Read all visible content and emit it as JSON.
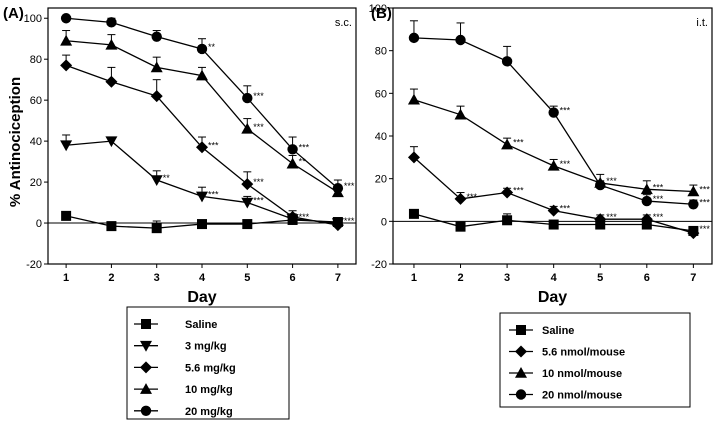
{
  "chart_data": [
    {
      "type": "line",
      "panel_label": "(A)",
      "corner_label": "s.c.",
      "ylabel": "% Antinociception",
      "xlabel": "Day",
      "x": [
        1,
        2,
        3,
        4,
        5,
        6,
        7
      ],
      "xticks": [
        "1",
        "2",
        "3",
        "4",
        "5",
        "6",
        "7"
      ],
      "yticks": [
        "-20",
        "0",
        "20",
        "40",
        "60",
        "80",
        "100"
      ],
      "ylim": [
        -20,
        105
      ],
      "xlim": [
        0.6,
        7.4
      ],
      "series": [
        {
          "name": "Saline",
          "marker": "square",
          "values": [
            3.5,
            -1.5,
            -2.5,
            -0.5,
            -0.5,
            1.5,
            0.5
          ],
          "errors": [
            1.5,
            1.5,
            3.5,
            1.5,
            1.5,
            1.5,
            1.5
          ]
        },
        {
          "name": "3 mg/kg",
          "marker": "triangle-down",
          "values": [
            38,
            40,
            21,
            13,
            10,
            2,
            0
          ],
          "errors": [
            5,
            1.5,
            4.5,
            4.5,
            3,
            2.5,
            1.5
          ]
        },
        {
          "name": "5.6 mg/kg",
          "marker": "diamond",
          "values": [
            77,
            69,
            62,
            37,
            19,
            3,
            -1
          ],
          "errors": [
            5,
            7,
            8,
            5,
            6,
            3,
            2
          ]
        },
        {
          "name": "10 mg/kg",
          "marker": "triangle-up",
          "values": [
            89,
            87,
            76,
            72,
            46,
            29,
            15
          ],
          "errors": [
            5,
            5,
            5,
            4,
            5,
            4,
            3
          ]
        },
        {
          "name": "20 mg/kg",
          "marker": "circle",
          "values": [
            100,
            98,
            91,
            85,
            61,
            36,
            17
          ],
          "errors": [
            1,
            2,
            3,
            5,
            6,
            6,
            4
          ]
        }
      ],
      "annotations": [
        {
          "x": 4,
          "y": 85,
          "text": "**"
        },
        {
          "x": 5,
          "y": 61,
          "text": "***"
        },
        {
          "x": 6,
          "y": 36,
          "text": "***"
        },
        {
          "x": 7,
          "y": 17,
          "text": "***"
        },
        {
          "x": 4,
          "y": 37,
          "text": "***"
        },
        {
          "x": 5,
          "y": 46,
          "text": "***"
        },
        {
          "x": 6,
          "y": 29,
          "text": "**"
        },
        {
          "x": 3,
          "y": 21,
          "text": "**"
        },
        {
          "x": 4,
          "y": 13,
          "text": "***"
        },
        {
          "x": 5,
          "y": 19,
          "text": "***"
        },
        {
          "x": 5,
          "y": 10,
          "text": "***"
        },
        {
          "x": 6,
          "y": 2,
          "text": "***"
        },
        {
          "x": 7,
          "y": 0,
          "text": "***"
        }
      ],
      "legend": [
        "Saline",
        "3 mg/kg",
        "5.6 mg/kg",
        "10 mg/kg",
        "20 mg/kg"
      ]
    },
    {
      "type": "line",
      "panel_label": "(B)",
      "corner_label": "i.t.",
      "ylabel": "",
      "xlabel": "Day",
      "x": [
        1,
        2,
        3,
        4,
        5,
        6,
        7
      ],
      "xticks": [
        "1",
        "2",
        "3",
        "4",
        "5",
        "6",
        "7"
      ],
      "yticks": [
        "-20",
        "0",
        "20",
        "40",
        "60",
        "80",
        "100"
      ],
      "ylim": [
        -20,
        100
      ],
      "xlim": [
        0.55,
        7.4
      ],
      "series": [
        {
          "name": "Saline",
          "marker": "square",
          "values": [
            3.5,
            -2.5,
            0.5,
            -1.5,
            -1.5,
            -1.5,
            -4.5
          ],
          "errors": [
            2,
            1.5,
            3,
            1.5,
            2,
            2,
            2
          ]
        },
        {
          "name": "5.6 nmol/mouse",
          "marker": "diamond",
          "values": [
            30,
            10.5,
            13.5,
            5,
            1,
            1,
            -5.5
          ],
          "errors": [
            5,
            3,
            2,
            2,
            2,
            2,
            2
          ]
        },
        {
          "name": "10 nmol/mouse",
          "marker": "triangle-up",
          "values": [
            57,
            50,
            36,
            26,
            18,
            15,
            14
          ],
          "errors": [
            5,
            4,
            3,
            3,
            4,
            4,
            3
          ]
        },
        {
          "name": "20 nmol/mouse",
          "marker": "circle",
          "values": [
            86,
            85,
            75,
            51,
            17,
            9.5,
            8
          ],
          "errors": [
            8,
            8,
            7,
            3,
            2,
            3,
            2
          ]
        }
      ],
      "annotations": [
        {
          "x": 2,
          "y": 10.5,
          "text": "***"
        },
        {
          "x": 3,
          "y": 13.5,
          "text": "***"
        },
        {
          "x": 3,
          "y": 36,
          "text": "***"
        },
        {
          "x": 4,
          "y": 51,
          "text": "***"
        },
        {
          "x": 4,
          "y": 26,
          "text": "***"
        },
        {
          "x": 4,
          "y": 5,
          "text": "***"
        },
        {
          "x": 5,
          "y": 18,
          "text": "***"
        },
        {
          "x": 5,
          "y": 1,
          "text": "***"
        },
        {
          "x": 6,
          "y": 15,
          "text": "***"
        },
        {
          "x": 6,
          "y": 9.5,
          "text": "***"
        },
        {
          "x": 6,
          "y": 1,
          "text": "***"
        },
        {
          "x": 7,
          "y": 14,
          "text": "***"
        },
        {
          "x": 7,
          "y": 8,
          "text": "***"
        },
        {
          "x": 7,
          "y": -4.5,
          "text": "***"
        }
      ],
      "legend": [
        "Saline",
        "5.6 nmol/mouse",
        "10 nmol/mouse",
        "20 nmol/mouse"
      ]
    }
  ]
}
